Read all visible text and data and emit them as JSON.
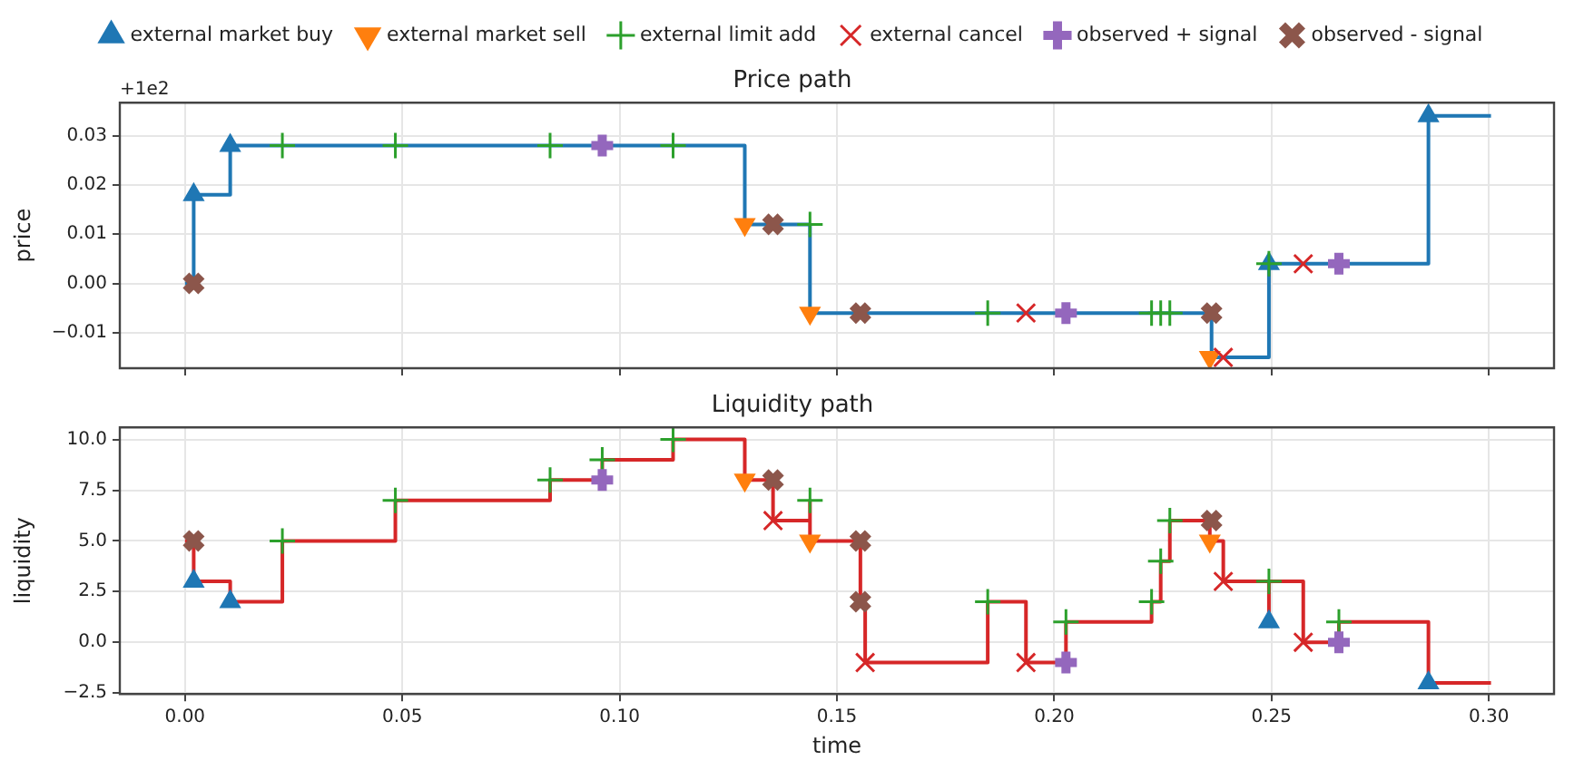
{
  "chart_data": [
    {
      "type": "step",
      "title": "Price path",
      "ylabel": "price",
      "annotations": [
        "+1e2"
      ],
      "legend": "top",
      "grid": true,
      "tick_labels": "y",
      "xlim": [
        -0.015,
        0.315
      ],
      "xticks": [
        {
          "value": 0,
          "label": null
        },
        {
          "value": 0.05,
          "label": null
        },
        {
          "value": 0.1,
          "label": null
        },
        {
          "value": 0.15,
          "label": null
        },
        {
          "value": 0.2,
          "label": null
        },
        {
          "value": 0.25,
          "label": null
        },
        {
          "value": 0.3,
          "label": null
        }
      ],
      "ylim": [
        -0.0172,
        0.0367
      ],
      "yticks": [
        {
          "value": -0.01,
          "label": "−0.01"
        },
        {
          "value": 0,
          "label": "0.00"
        },
        {
          "value": 0.01,
          "label": "0.01"
        },
        {
          "value": 0.02,
          "label": "0.02"
        },
        {
          "value": 0.03,
          "label": "0.03"
        }
      ],
      "series": [
        {
          "color": "#1f77b4",
          "x": [
            0.0,
            0.002,
            0.002,
            0.0104,
            0.1288,
            0.1438,
            0.2362,
            0.2494,
            0.2861,
            0.3005
          ],
          "values": [
            0.0,
            0.0,
            0.018,
            0.028,
            0.012,
            -0.006,
            -0.015,
            0.004,
            0.034,
            0.034
          ]
        },
        {
          "type": "scatter",
          "name": "external market buy",
          "color": "#1f77b4",
          "marker": "triangle",
          "x": [
            0.002,
            0.0104,
            0.2494,
            0.2861
          ],
          "values": [
            0.018,
            0.028,
            0.004,
            0.034
          ]
        },
        {
          "type": "scatter",
          "name": "external market sell",
          "color": "#ff7f0e",
          "marker": "triangle",
          "x": [
            0.1288,
            0.1438,
            0.2358
          ],
          "values": [
            0.012,
            -0.006,
            -0.015
          ]
        },
        {
          "type": "scatter",
          "name": "external limit add",
          "color": "#2ca02c",
          "marker": "cross",
          "x": [
            0.0224,
            0.0484,
            0.084,
            0.1123,
            0.1438,
            0.1847,
            0.2224,
            0.2245,
            0.2266,
            0.2494
          ],
          "values": [
            0.028,
            0.028,
            0.028,
            0.028,
            0.012,
            -0.006,
            -0.006,
            -0.006,
            -0.006,
            0.004
          ]
        },
        {
          "type": "scatter",
          "name": "external cancel",
          "color": "#d62728",
          "marker": "cross",
          "x": [
            0.1935,
            0.2389,
            0.2573
          ],
          "values": [
            -0.006,
            -0.015,
            0.004
          ]
        },
        {
          "type": "scatter",
          "name": "observed + signal",
          "color": "#9467bd",
          "marker": "cross",
          "x": [
            0.096,
            0.2027,
            0.2655
          ],
          "values": [
            0.028,
            -0.006,
            0.004
          ]
        },
        {
          "type": "scatter",
          "name": "observed - signal",
          "color": "#8c564b",
          "marker": "cross",
          "x": [
            0.002,
            0.1353,
            0.1554,
            0.2362
          ],
          "values": [
            0.0,
            0.012,
            -0.006,
            -0.006
          ]
        }
      ]
    },
    {
      "type": "step",
      "title": "Liquidity path",
      "xlabel": "time",
      "ylabel": "liquidity",
      "grid": true,
      "xlim": [
        -0.015,
        0.315
      ],
      "xticks": [
        {
          "value": 0,
          "label": "0.00"
        },
        {
          "value": 0.05,
          "label": "0.05"
        },
        {
          "value": 0.1,
          "label": "0.10"
        },
        {
          "value": 0.15,
          "label": "0.15"
        },
        {
          "value": 0.2,
          "label": "0.20"
        },
        {
          "value": 0.25,
          "label": "0.25"
        },
        {
          "value": 0.3,
          "label": "0.30"
        }
      ],
      "ylim": [
        -2.55,
        10.6
      ],
      "yticks": [
        {
          "value": -2.5,
          "label": "−2.5"
        },
        {
          "value": 0,
          "label": "0.0"
        },
        {
          "value": 2.5,
          "label": "2.5"
        },
        {
          "value": 5,
          "label": "5.0"
        },
        {
          "value": 7.5,
          "label": "7.5"
        },
        {
          "value": 10,
          "label": "10.0"
        }
      ],
      "series": [
        {
          "color": "#d62728",
          "x": [
            0.0,
            0.002,
            0.0104,
            0.0224,
            0.0484,
            0.084,
            0.096,
            0.1123,
            0.1288,
            0.1353,
            0.1438,
            0.1438,
            0.1554,
            0.1565,
            0.1847,
            0.1935,
            0.2027,
            0.2224,
            0.2245,
            0.2266,
            0.2358,
            0.2389,
            0.2494,
            0.2494,
            0.2573,
            0.2655,
            0.2861,
            0.3005
          ],
          "values": [
            5,
            3,
            2,
            5,
            7,
            8,
            9,
            10,
            8,
            6,
            7,
            5,
            2,
            -1,
            2,
            -1,
            1,
            2,
            4,
            6,
            5,
            3,
            1,
            3,
            0,
            1,
            -2,
            -2
          ]
        },
        {
          "type": "scatter",
          "color": "#1f77b4",
          "marker": "triangle",
          "x": [
            0.002,
            0.0104,
            0.2494,
            0.2861
          ],
          "values": [
            3,
            2,
            1,
            -2
          ]
        },
        {
          "type": "scatter",
          "color": "#ff7f0e",
          "marker": "triangle",
          "x": [
            0.1288,
            0.1438,
            0.2358
          ],
          "values": [
            8,
            5,
            5
          ]
        },
        {
          "type": "scatter",
          "color": "#2ca02c",
          "marker": "cross",
          "x": [
            0.0224,
            0.0484,
            0.084,
            0.096,
            0.1123,
            0.1438,
            0.1847,
            0.2027,
            0.2224,
            0.2245,
            0.2266,
            0.2494,
            0.2655
          ],
          "values": [
            5,
            7,
            8,
            9,
            10,
            7,
            2,
            1,
            2,
            4,
            6,
            3,
            1
          ]
        },
        {
          "type": "scatter",
          "color": "#d62728",
          "marker": "cross",
          "x": [
            0.1353,
            0.1565,
            0.1935,
            0.2389,
            0.2573
          ],
          "values": [
            6,
            -1,
            -1,
            3,
            0
          ]
        },
        {
          "type": "scatter",
          "color": "#9467bd",
          "marker": "cross",
          "x": [
            0.096,
            0.2027,
            0.2655
          ],
          "values": [
            8,
            -1,
            0
          ]
        },
        {
          "type": "scatter",
          "color": "#8c564b",
          "marker": "cross",
          "x": [
            0.002,
            0.1353,
            0.1554,
            0.1554,
            0.2362
          ],
          "values": [
            5,
            8,
            5,
            2,
            6
          ]
        }
      ]
    }
  ]
}
